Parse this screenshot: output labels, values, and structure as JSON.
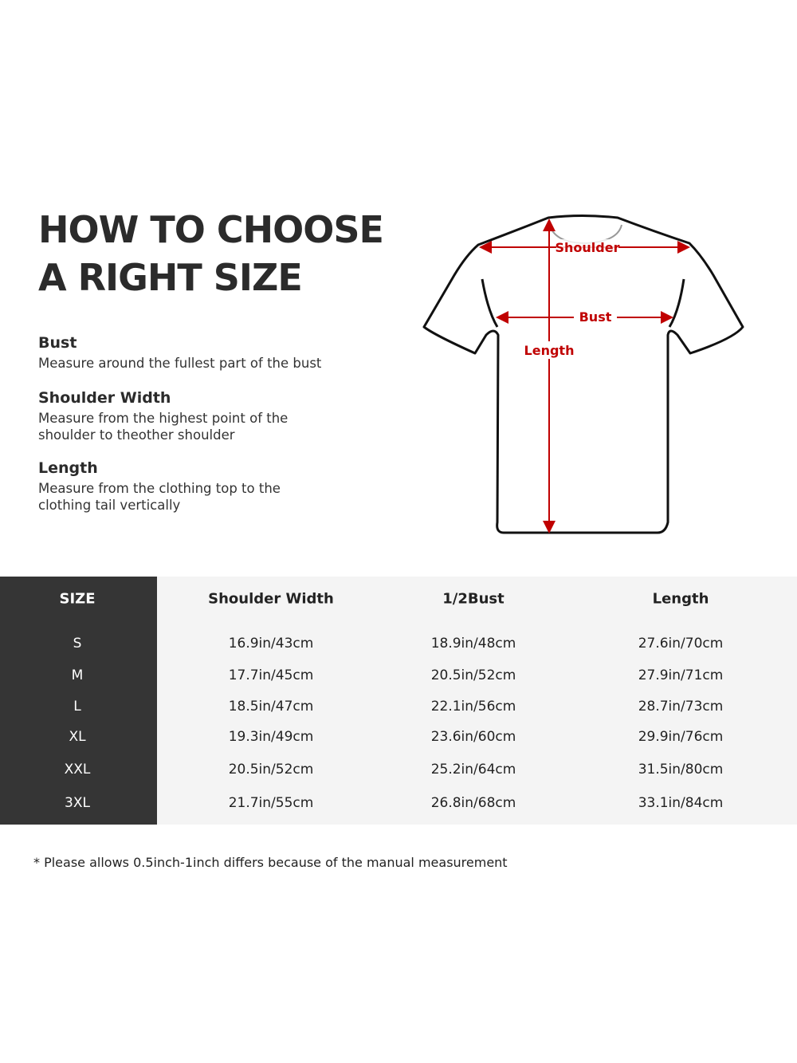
{
  "title": {
    "line1": "HOW TO CHOOSE",
    "line2": "A RIGHT SIZE"
  },
  "guide": [
    {
      "heading": "Bust",
      "desc": "Measure around the fullest part of the bust"
    },
    {
      "heading": "Shoulder Width",
      "desc": "Measure from the highest point of the shoulder to theother shoulder"
    },
    {
      "heading": "Length",
      "desc": "Measure from the clothing top to the clothing tail vertically"
    }
  ],
  "diagram": {
    "shoulder": "Shoulder",
    "bust": "Bust",
    "length": "Length",
    "accent_color": "#c00000"
  },
  "table": {
    "headers": [
      "SIZE",
      "Shoulder Width",
      "1/2Bust",
      "Length"
    ],
    "rows": [
      [
        "S",
        "16.9in/43cm",
        "18.9in/48cm",
        "27.6in/70cm"
      ],
      [
        "M",
        "17.7in/45cm",
        "20.5in/52cm",
        "27.9in/71cm"
      ],
      [
        "L",
        "18.5in/47cm",
        "22.1in/56cm",
        "28.7in/73cm"
      ],
      [
        "XL",
        "19.3in/49cm",
        "23.6in/60cm",
        "29.9in/76cm"
      ],
      [
        "XXL",
        "20.5in/52cm",
        "25.2in/64cm",
        "31.5in/80cm"
      ],
      [
        "3XL",
        "21.7in/55cm",
        "26.8in/68cm",
        "33.1in/84cm"
      ]
    ]
  },
  "note": "* Please allows 0.5inch-1inch differs because of the  manual measurement"
}
